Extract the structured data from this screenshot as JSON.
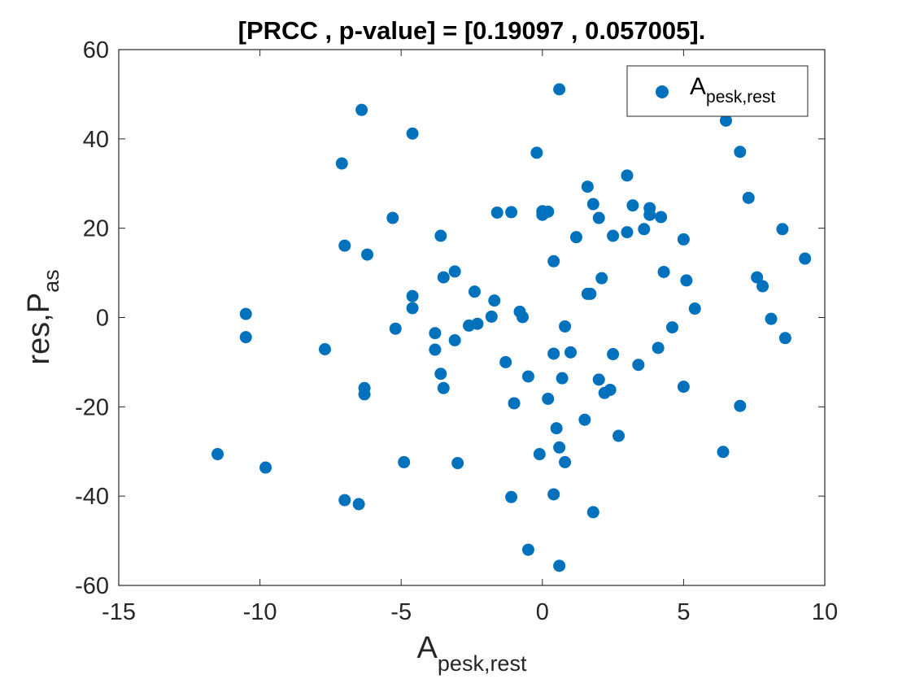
{
  "chart_data": {
    "type": "scatter",
    "title": "[PRCC , p-value] = [0.19097 , 0.057005].",
    "xlabel": {
      "main": "A",
      "sub": "pesk,rest"
    },
    "ylabel": {
      "main": "res,P",
      "sub": "as"
    },
    "xlim": [
      -15,
      10
    ],
    "ylim": [
      -60,
      60
    ],
    "xticks": [
      -15,
      -10,
      -5,
      0,
      5,
      10
    ],
    "yticks": [
      -60,
      -40,
      -20,
      0,
      20,
      40,
      60
    ],
    "xtick_labels": [
      "-15",
      "-10",
      "-5",
      "0",
      "5",
      "10"
    ],
    "ytick_labels": [
      "-60",
      "-40",
      "-20",
      "0",
      "20",
      "40",
      "60"
    ],
    "grid": false,
    "legend": {
      "position": "top-right",
      "label_main": "A",
      "label_sub": "pesk,rest"
    },
    "series": [
      {
        "name": "A_pesk,rest",
        "color": "#0072BD",
        "points": [
          [
            -11.5,
            -30.6
          ],
          [
            -10.5,
            0.8
          ],
          [
            -10.5,
            -4.4
          ],
          [
            -9.8,
            -33.6
          ],
          [
            -7.7,
            -7.1
          ],
          [
            -7.1,
            34.5
          ],
          [
            -7.0,
            16.1
          ],
          [
            -7.0,
            -40.9
          ],
          [
            -6.5,
            -41.8
          ],
          [
            -6.4,
            46.5
          ],
          [
            -6.3,
            -15.8
          ],
          [
            -6.3,
            -17.2
          ],
          [
            -6.2,
            14.1
          ],
          [
            -5.3,
            22.3
          ],
          [
            -5.2,
            -2.5
          ],
          [
            -4.9,
            -32.4
          ],
          [
            -4.6,
            41.2
          ],
          [
            -4.6,
            4.8
          ],
          [
            -4.6,
            2.1
          ],
          [
            -3.8,
            -3.5
          ],
          [
            -3.8,
            -7.2
          ],
          [
            -3.6,
            -12.6
          ],
          [
            -3.6,
            18.3
          ],
          [
            -3.5,
            9.0
          ],
          [
            -3.5,
            -15.8
          ],
          [
            -3.1,
            10.3
          ],
          [
            -3.1,
            -5.1
          ],
          [
            -3.0,
            -32.6
          ],
          [
            -2.6,
            -1.8
          ],
          [
            -2.4,
            5.8
          ],
          [
            -2.3,
            -1.4
          ],
          [
            -1.8,
            0.2
          ],
          [
            -1.7,
            3.8
          ],
          [
            -1.6,
            23.5
          ],
          [
            -1.3,
            -10.0
          ],
          [
            -1.1,
            23.6
          ],
          [
            -1.1,
            -40.2
          ],
          [
            -1.0,
            -19.2
          ],
          [
            -0.8,
            1.3
          ],
          [
            -0.7,
            0.1
          ],
          [
            -0.5,
            -13.2
          ],
          [
            -0.5,
            -52.0
          ],
          [
            -0.2,
            36.9
          ],
          [
            -0.1,
            -30.6
          ],
          [
            0.0,
            23.8
          ],
          [
            0.0,
            23.0
          ],
          [
            0.2,
            23.7
          ],
          [
            0.2,
            -18.2
          ],
          [
            0.4,
            12.6
          ],
          [
            0.4,
            -8.1
          ],
          [
            0.4,
            -39.6
          ],
          [
            0.5,
            -24.8
          ],
          [
            0.6,
            -29.1
          ],
          [
            0.6,
            51.1
          ],
          [
            0.6,
            -55.6
          ],
          [
            0.7,
            -13.6
          ],
          [
            0.8,
            -32.4
          ],
          [
            0.8,
            -2.0
          ],
          [
            1.0,
            -7.8
          ],
          [
            1.2,
            18.0
          ],
          [
            1.5,
            -22.9
          ],
          [
            1.6,
            5.3
          ],
          [
            1.6,
            29.3
          ],
          [
            1.7,
            5.3
          ],
          [
            1.8,
            25.4
          ],
          [
            1.8,
            -43.6
          ],
          [
            2.0,
            22.3
          ],
          [
            2.0,
            -13.9
          ],
          [
            2.1,
            8.8
          ],
          [
            2.2,
            -16.9
          ],
          [
            2.4,
            -16.2
          ],
          [
            2.5,
            -8.2
          ],
          [
            2.5,
            18.3
          ],
          [
            2.7,
            -26.5
          ],
          [
            3.0,
            31.8
          ],
          [
            3.0,
            19.1
          ],
          [
            3.2,
            25.1
          ],
          [
            3.4,
            -10.6
          ],
          [
            3.6,
            19.8
          ],
          [
            3.8,
            23.0
          ],
          [
            3.8,
            24.5
          ],
          [
            4.1,
            -6.8
          ],
          [
            4.2,
            22.5
          ],
          [
            4.3,
            10.2
          ],
          [
            4.6,
            -2.2
          ],
          [
            5.0,
            -15.5
          ],
          [
            5.0,
            17.5
          ],
          [
            5.1,
            8.3
          ],
          [
            5.4,
            2.0
          ],
          [
            6.4,
            -30.1
          ],
          [
            6.5,
            44.1
          ],
          [
            7.0,
            37.1
          ],
          [
            7.0,
            -19.8
          ],
          [
            7.3,
            26.8
          ],
          [
            7.6,
            9.0
          ],
          [
            7.8,
            7.0
          ],
          [
            8.1,
            -0.3
          ],
          [
            8.5,
            19.8
          ],
          [
            8.6,
            -4.6
          ],
          [
            9.3,
            13.2
          ]
        ]
      }
    ]
  }
}
